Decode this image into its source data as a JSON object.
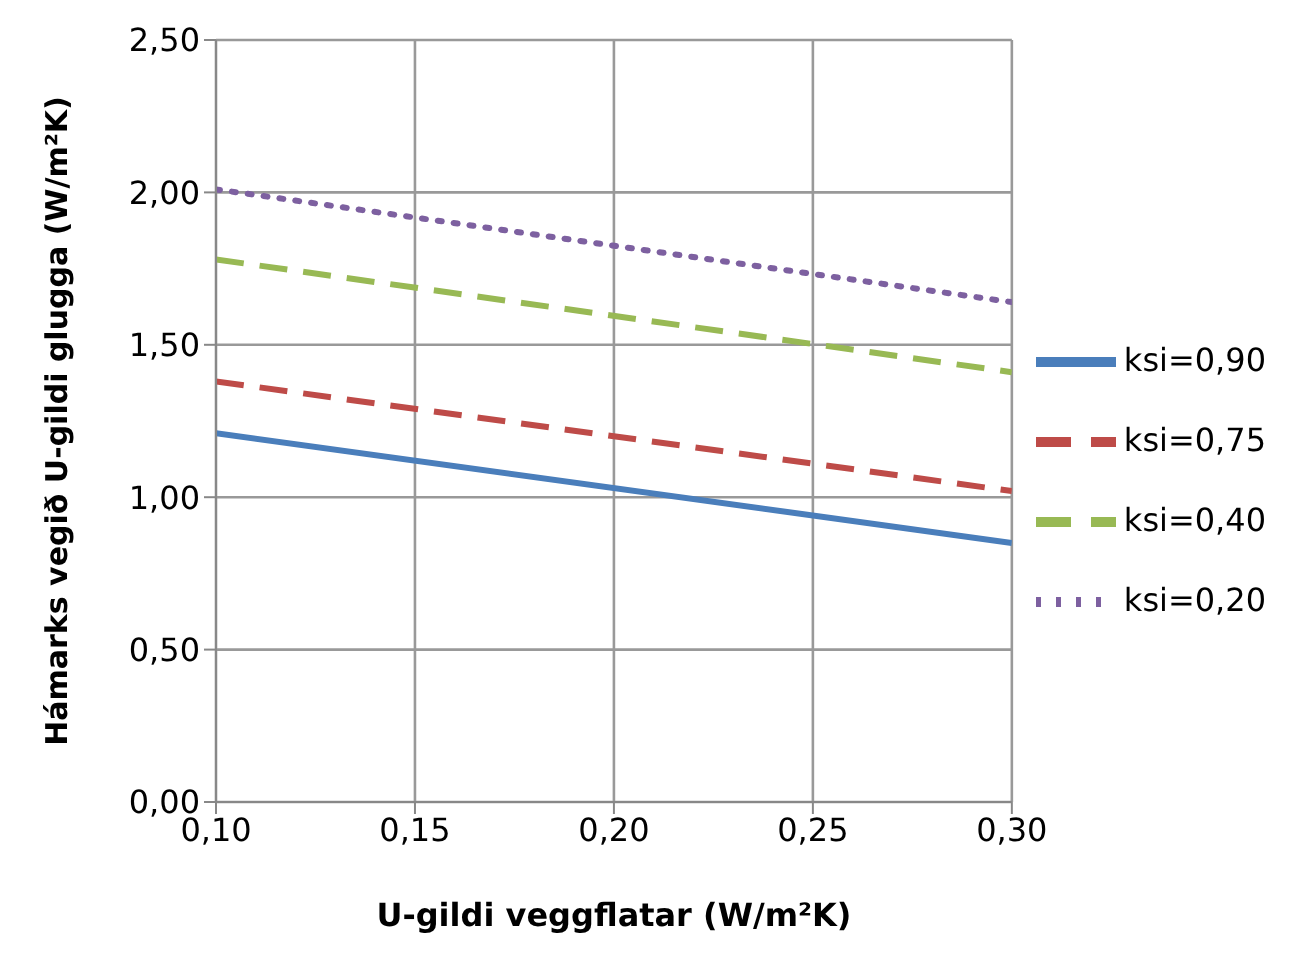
{
  "chart_data": {
    "type": "line",
    "xlabel": "U-gildi veggflatar (W/m²K)",
    "ylabel": "Hámarks vegið U-gildi glugga (W/m²K)",
    "x": [
      0.1,
      0.3
    ],
    "series": [
      {
        "name": "ksi=0,90",
        "color": "#4a7ebb",
        "values": [
          1.21,
          0.85
        ],
        "line_style": "solid"
      },
      {
        "name": "ksi=0,75",
        "color": "#be4b48",
        "values": [
          1.38,
          1.02
        ],
        "line_style": "dashed"
      },
      {
        "name": "ksi=0,40",
        "color": "#98b954",
        "values": [
          1.78,
          1.41
        ],
        "line_style": "dashed"
      },
      {
        "name": "ksi=0,20",
        "color": "#7d60a0",
        "values": [
          2.01,
          1.64
        ],
        "line_style": "dotted"
      }
    ],
    "xlim": [
      0.1,
      0.3
    ],
    "xticks": [
      {
        "value": 0.1,
        "label": "0,10"
      },
      {
        "value": 0.15,
        "label": "0,15"
      },
      {
        "value": 0.2,
        "label": "0,20"
      },
      {
        "value": 0.25,
        "label": "0,25"
      },
      {
        "value": 0.3,
        "label": "0,30"
      }
    ],
    "ylim": [
      0,
      2.5
    ],
    "yticks": [
      {
        "value": 0,
        "label": "0,00"
      },
      {
        "value": 0.5,
        "label": "0,50"
      },
      {
        "value": 1,
        "label": "1,00"
      },
      {
        "value": 1.5,
        "label": "1,50"
      },
      {
        "value": 2,
        "label": "2,00"
      },
      {
        "value": 2.5,
        "label": "2,50"
      }
    ],
    "grid": true,
    "legend": "right",
    "marker": "none"
  }
}
